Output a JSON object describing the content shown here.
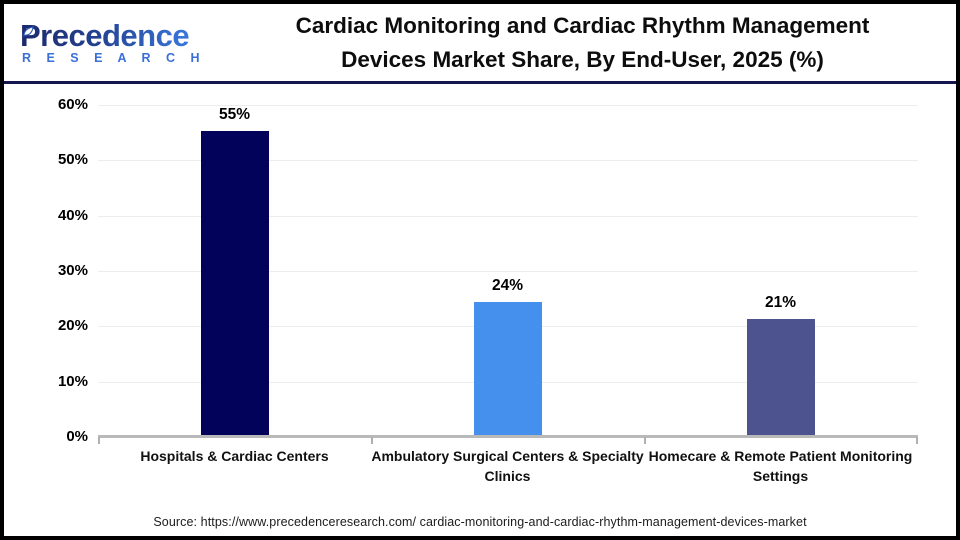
{
  "header": {
    "logo": {
      "name": "Precedence",
      "subtitle": "R E S E A R C H",
      "leaf_icon": "leaf-icon",
      "navy": "#1c2a6e",
      "blue": "#3a6fd8"
    },
    "title": "Cardiac Monitoring and Cardiac Rhythm Management Devices Market Share, By End-User, 2025 (%)"
  },
  "chart_data": {
    "type": "bar",
    "title": "Cardiac Monitoring and Cardiac Rhythm Management Devices Market Share, By End-User, 2025 (%)",
    "categories": [
      "Hospitals & Cardiac Centers",
      "Ambulatory Surgical Centers & Specialty Clinics",
      "Homecare & Remote Patient Monitoring Settings"
    ],
    "values": [
      55,
      24,
      21
    ],
    "value_labels": [
      "55%",
      "24%",
      "21%"
    ],
    "bar_colors": [
      "#02025A",
      "#4590EC",
      "#4D538E"
    ],
    "xlabel": "",
    "ylabel": "",
    "ylim": [
      0,
      60
    ],
    "yticks": [
      "0%",
      "10%",
      "20%",
      "30%",
      "40%",
      "50%",
      "60%"
    ],
    "grid": true,
    "legend": false,
    "gridline_color": "#ededed",
    "axis_color": "#b9b9b9"
  },
  "source": {
    "text": "Source: https://www.precedenceresearch.com/ cardiac-monitoring-and-cardiac-rhythm-management-devices-market"
  }
}
